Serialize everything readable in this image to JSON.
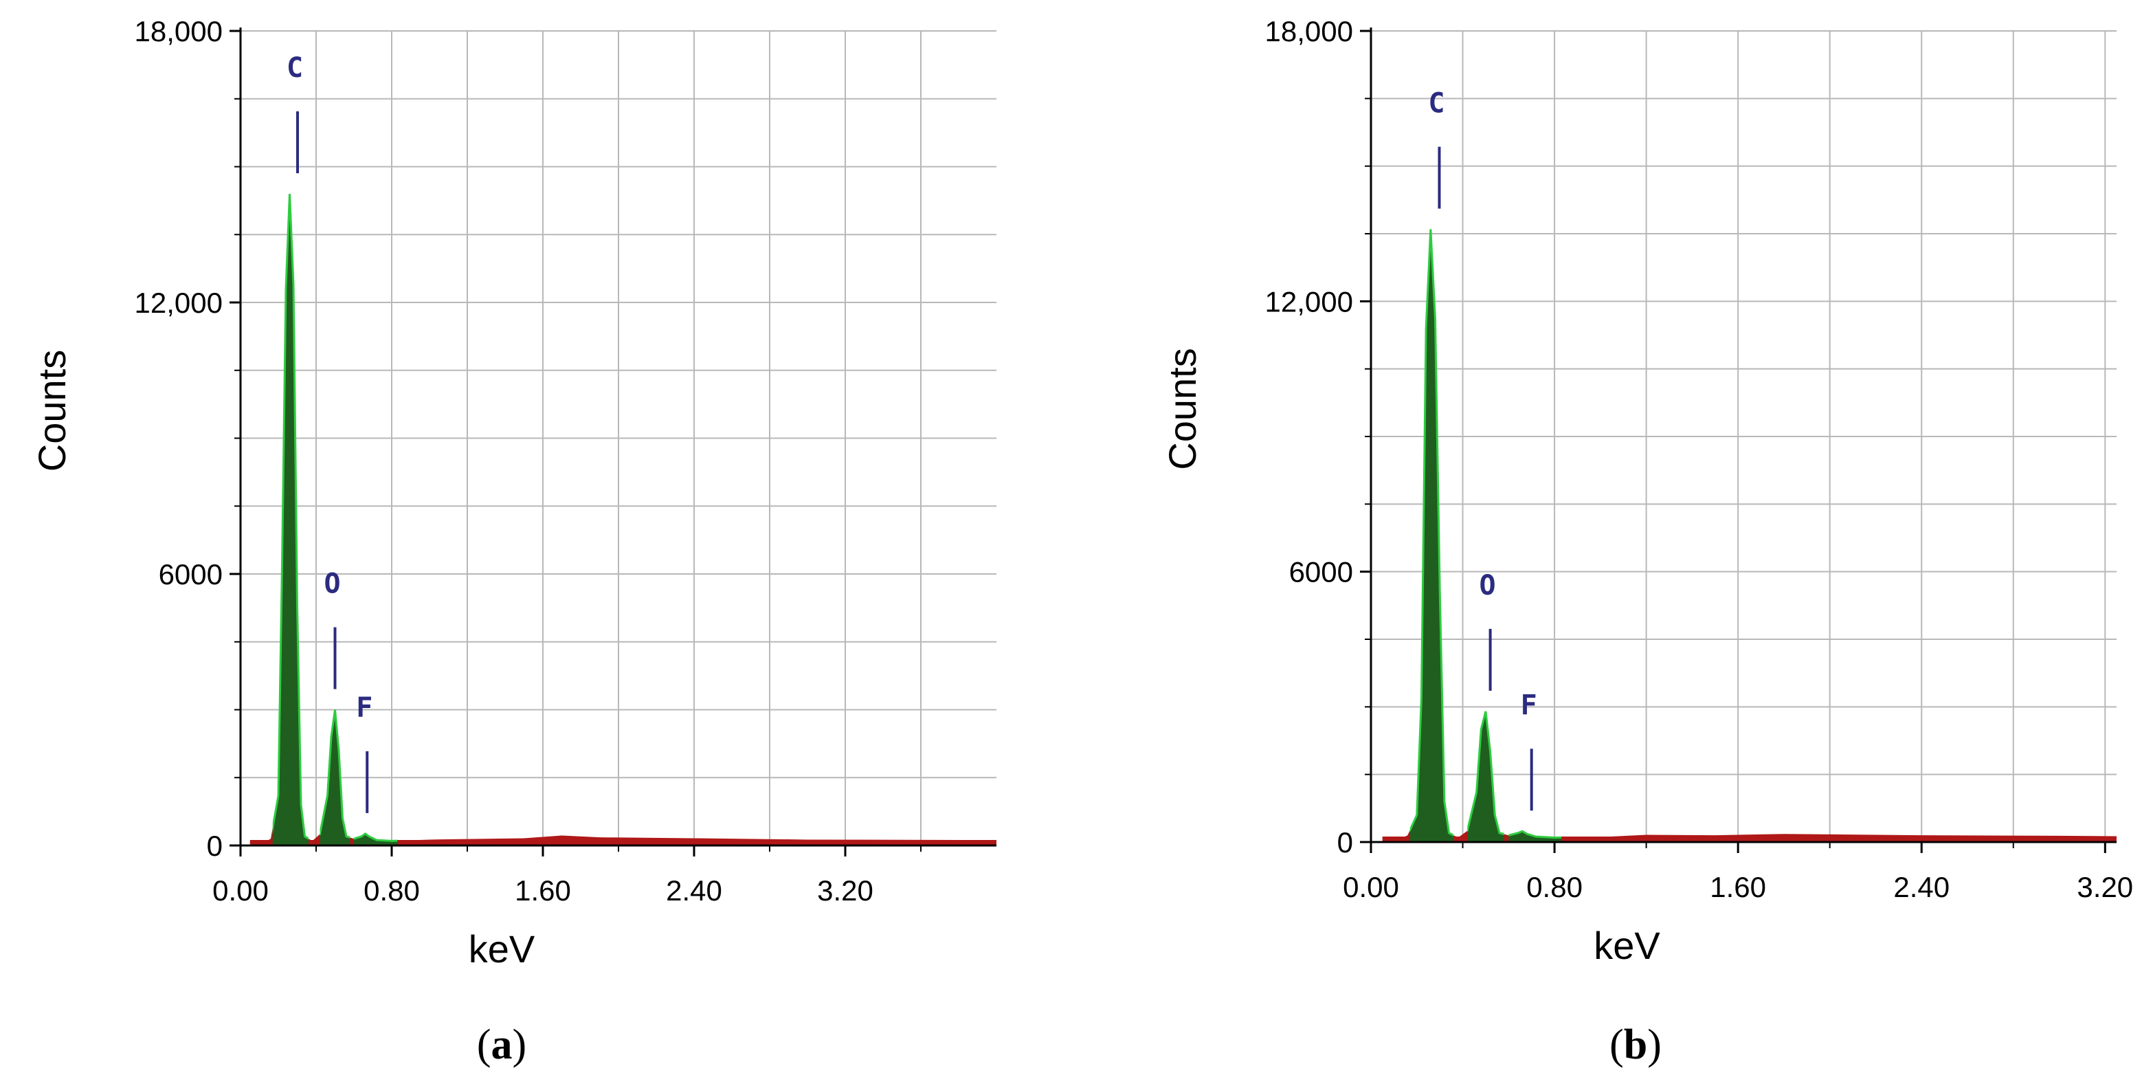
{
  "chart_data": [
    {
      "type": "area",
      "panel_label": "a",
      "xlabel": "keV",
      "ylabel": "Counts",
      "xlim": [
        0,
        4.0
      ],
      "ylim": [
        0,
        18000
      ],
      "x_ticks": [
        "0.00",
        "0.80",
        "1.60",
        "2.40",
        "3.20"
      ],
      "x_tick_values": [
        0,
        0.8,
        1.6,
        2.4,
        3.2
      ],
      "y_ticks": [
        "0",
        "6000",
        "12,000",
        "18,000"
      ],
      "y_tick_values": [
        0,
        6000,
        12000,
        18000
      ],
      "grid": true,
      "peak_color": "#1f5e1f",
      "background_color": "#b01818",
      "element_label_color": "#2b2b80",
      "series": [
        {
          "x": [
            0.0,
            0.1,
            0.16,
            0.2,
            0.22,
            0.24,
            0.26,
            0.28,
            0.3,
            0.32,
            0.34,
            0.38,
            0.42,
            0.46,
            0.48,
            0.5,
            0.52,
            0.54,
            0.56,
            0.6,
            0.64,
            0.66,
            0.68,
            0.72,
            0.8,
            1.0,
            1.5,
            1.7,
            1.9,
            2.4,
            3.0,
            4.0
          ],
          "y": [
            0,
            0,
            150,
            1100,
            6200,
            12300,
            14400,
            12400,
            5300,
            900,
            200,
            100,
            250,
            1100,
            2400,
            3000,
            2100,
            600,
            200,
            150,
            200,
            260,
            200,
            120,
            100,
            130,
            160,
            220,
            180,
            160,
            130,
            120
          ]
        }
      ],
      "annotations": [
        {
          "text": "C",
          "x": 0.28
        },
        {
          "text": "O",
          "x": 0.5
        },
        {
          "text": "F",
          "x": 0.67
        }
      ]
    },
    {
      "type": "area",
      "panel_label": "b",
      "xlabel": "keV",
      "ylabel": "Counts",
      "xlim": [
        0,
        3.25
      ],
      "ylim": [
        0,
        18000
      ],
      "x_ticks": [
        "0.00",
        "0.80",
        "1.60",
        "2.40",
        "3.20"
      ],
      "x_tick_values": [
        0,
        0.8,
        1.6,
        2.4,
        3.2
      ],
      "y_ticks": [
        "0",
        "6000",
        "12,000",
        "18,000"
      ],
      "y_tick_values": [
        0,
        6000,
        12000,
        18000
      ],
      "grid": true,
      "peak_color": "#1f5e1f",
      "background_color": "#b01818",
      "element_label_color": "#2b2b80",
      "series": [
        {
          "x": [
            0.0,
            0.1,
            0.16,
            0.2,
            0.22,
            0.24,
            0.26,
            0.28,
            0.3,
            0.32,
            0.34,
            0.38,
            0.42,
            0.46,
            0.48,
            0.5,
            0.52,
            0.54,
            0.56,
            0.6,
            0.64,
            0.66,
            0.68,
            0.72,
            0.8,
            1.0,
            1.2,
            1.5,
            1.8,
            2.4,
            3.0,
            3.25
          ],
          "y": [
            0,
            0,
            150,
            600,
            3200,
            11400,
            13600,
            11600,
            5600,
            900,
            200,
            100,
            250,
            1100,
            2500,
            2900,
            2000,
            600,
            200,
            150,
            200,
            240,
            180,
            120,
            100,
            110,
            160,
            150,
            180,
            150,
            140,
            130
          ]
        }
      ],
      "annotations": [
        {
          "text": "C",
          "x": 0.28
        },
        {
          "text": "O",
          "x": 0.52
        },
        {
          "text": "F",
          "x": 0.7
        }
      ]
    }
  ]
}
